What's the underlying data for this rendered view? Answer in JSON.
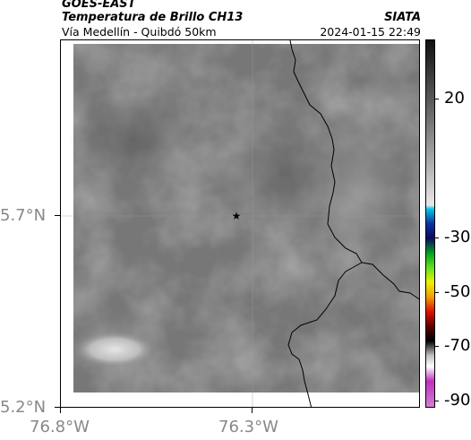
{
  "header": {
    "satellite": "GOES-EAST",
    "product": "Temperatura de Brillo CH13",
    "region": "Vía Medellín - Quibdó 50km",
    "org": "SIATA",
    "datetime": "2024-01-15 22:49"
  },
  "map": {
    "lat_ticks": [
      "5.7°N",
      "5.2°N"
    ],
    "lon_ticks": [
      "76.8°W",
      "76.3°W"
    ],
    "marker": "star-marker"
  },
  "colorbar": {
    "ticks": [
      "20",
      "-30",
      "-50",
      "-70",
      "-90"
    ]
  }
}
